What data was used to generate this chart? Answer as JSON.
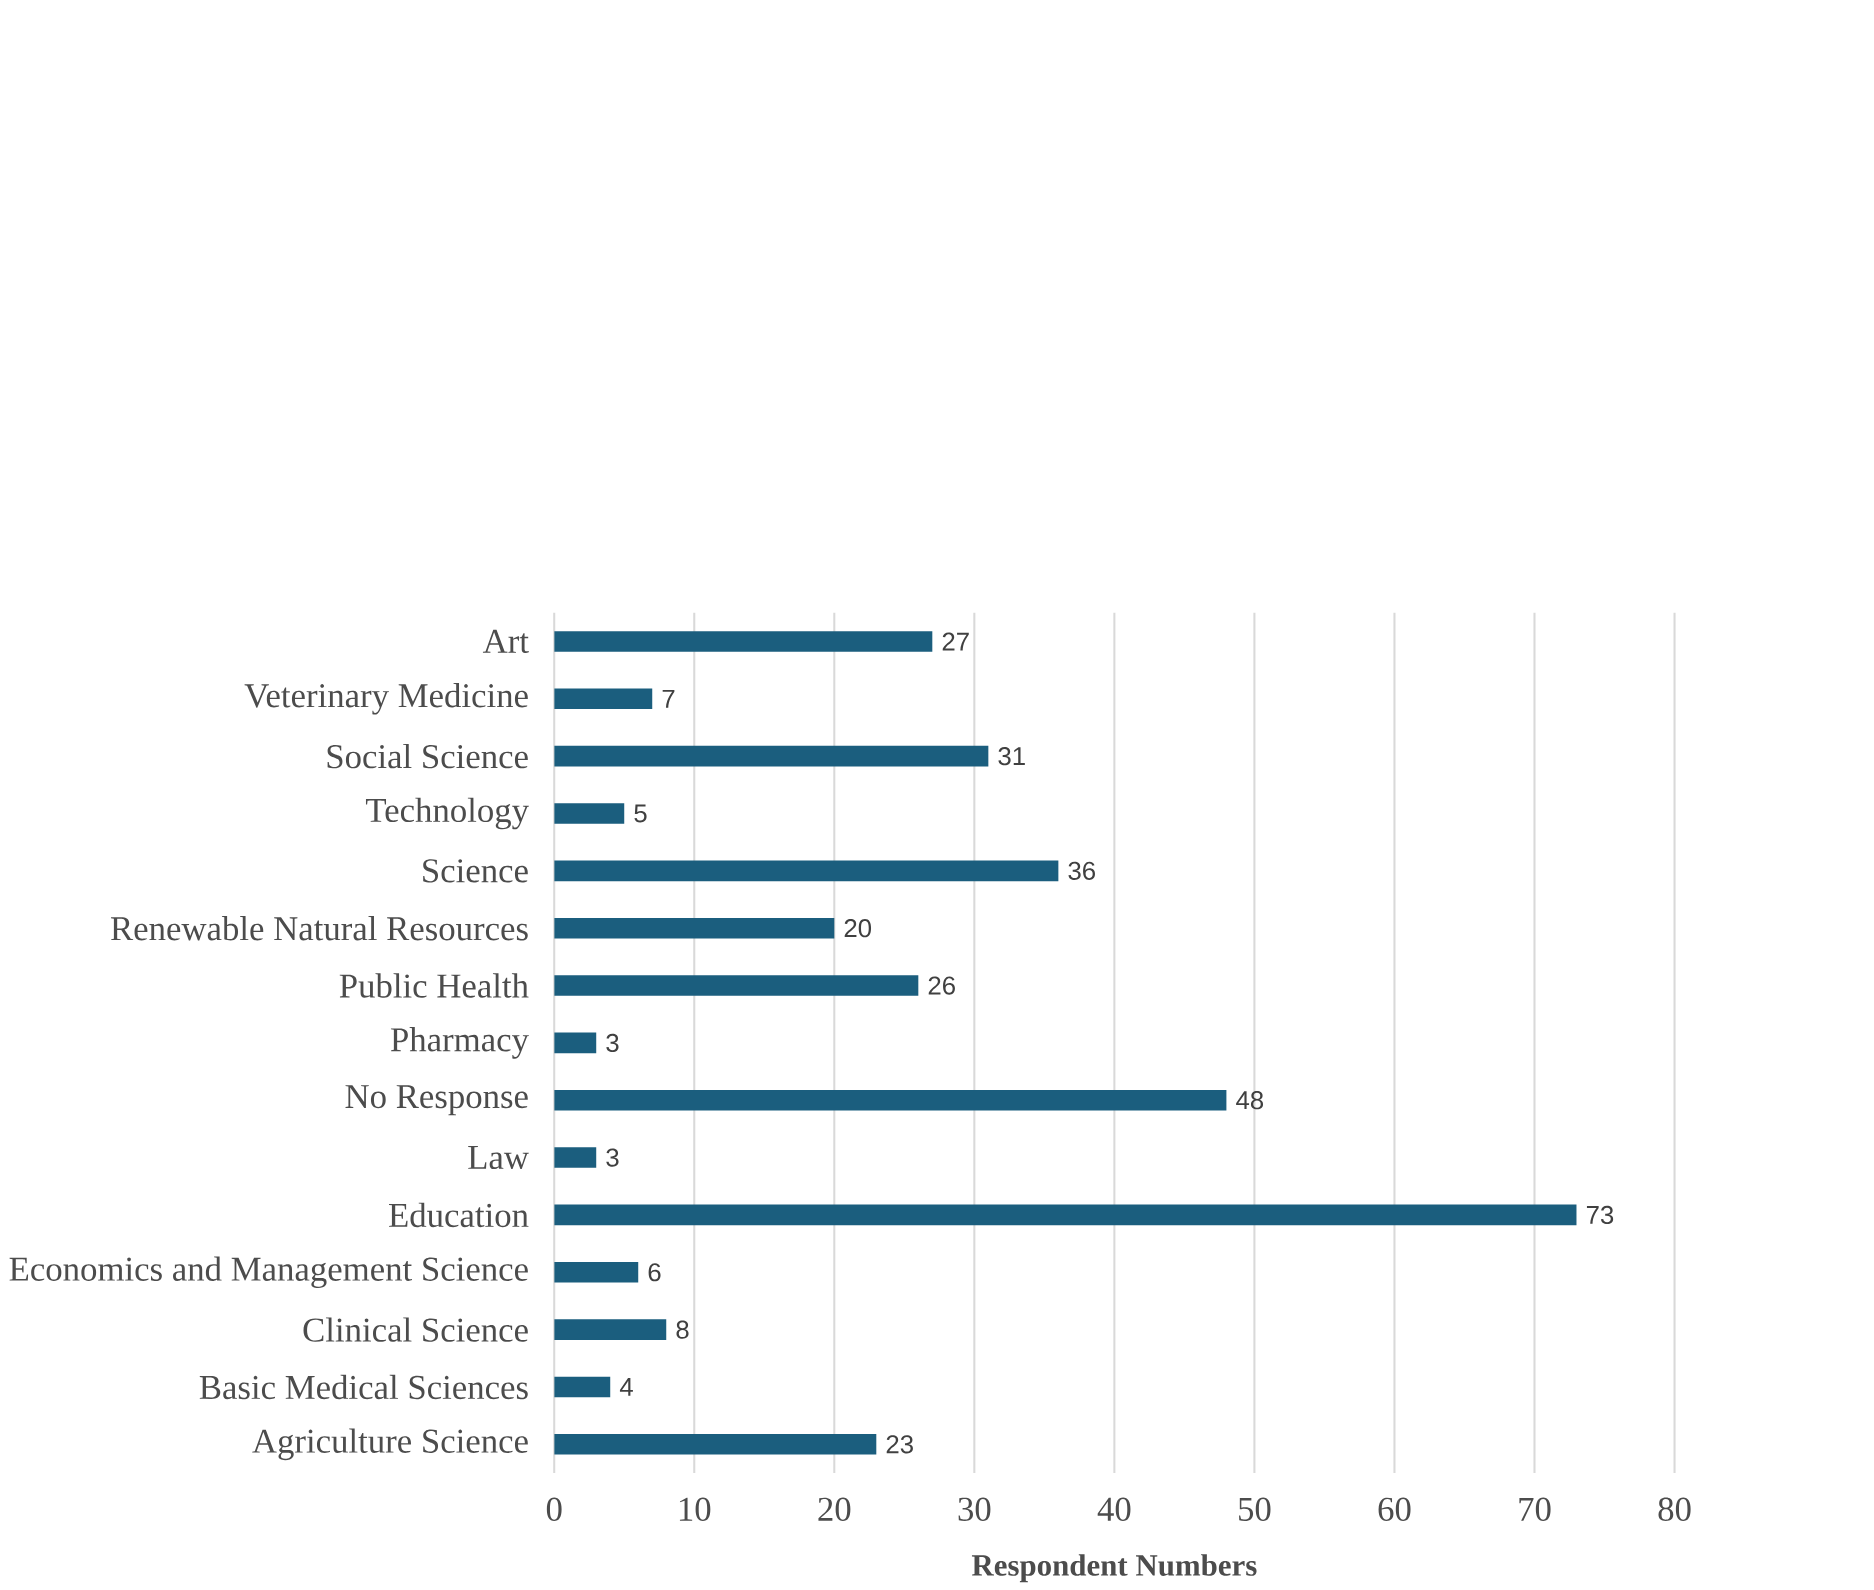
{
  "chart_data": {
    "type": "bar",
    "orientation": "horizontal",
    "xlabel": "Respondent Numbers",
    "categories": [
      "Art",
      "Veterinary Medicine",
      "Social Science",
      "Technology",
      "Science",
      "Renewable Natural Resources",
      "Public Health",
      "Pharmacy",
      "No Response",
      "Law",
      "Education",
      "Economics and Management Science",
      "Clinical Science",
      "Basic Medical Sciences",
      "Agriculture Science"
    ],
    "values": [
      27,
      7,
      31,
      5,
      36,
      20,
      26,
      3,
      48,
      3,
      73,
      6,
      8,
      4,
      23
    ],
    "color": "#1b5e7e",
    "xlim": [
      0,
      80
    ],
    "xticks": [
      0,
      10,
      20,
      30,
      40,
      50,
      60,
      70,
      80
    ],
    "grid": "x",
    "data_labels": true
  }
}
